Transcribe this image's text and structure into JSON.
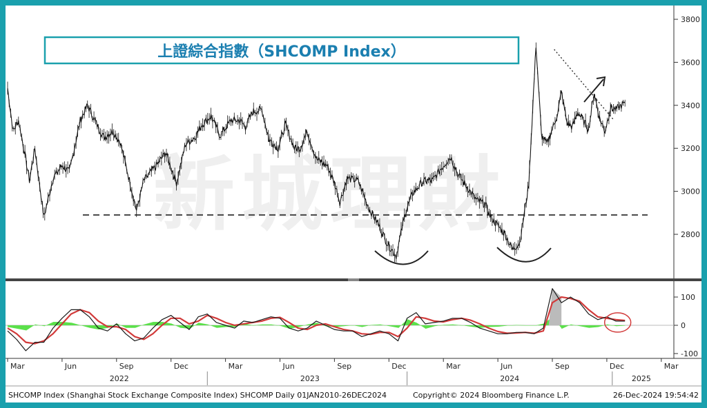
{
  "colors": {
    "border": "#1aa0ad",
    "title_box": "#1aa0ad",
    "title_text": "#1b7fb0",
    "price": "#111111",
    "macd": "#1a1a1a",
    "signal": "#d23a3a",
    "hist_pos": "#5be04a",
    "hist_neg": "#5be04a",
    "annotation": "#1a1a1a",
    "circle": "#d23a3a"
  },
  "title": "上證綜合指數（SHCOMP Index）",
  "watermark": "新城理財",
  "x_axis": {
    "month_labels": [
      "Mar",
      "Jun",
      "Sep",
      "Dec",
      "Mar",
      "Jun",
      "Sep",
      "Dec",
      "Mar",
      "Jun",
      "Sep",
      "Dec",
      "Mar"
    ],
    "year_labels": [
      "2022",
      "2023",
      "2024",
      "2025"
    ]
  },
  "footer": {
    "left": "SHCOMP Index (Shanghai Stock Exchange Composite Index) SHCOMP  Daily 01JAN2010-26DEC2024",
    "center": "Copyright© 2024 Bloomberg Finance L.P.",
    "right": "26-Dec-2024 19:54:42"
  },
  "chart_data": [
    {
      "type": "line",
      "name": "price",
      "y_ticks": [
        2800,
        3000,
        3200,
        3400,
        3600,
        3800
      ],
      "ylim": [
        2620,
        3830
      ],
      "x_domain": [
        0,
        34
      ],
      "x_ticks_months": [
        0,
        3,
        6,
        9,
        12,
        15,
        18,
        21,
        24,
        27,
        30,
        33,
        36
      ],
      "series": [
        {
          "x": [
            0,
            0.3,
            0.6,
            1.0,
            1.2,
            1.5,
            2.0,
            2.5,
            3.0,
            3.4,
            4.0,
            4.4,
            4.8,
            5.3,
            5.8,
            6.2,
            6.8,
            7.1,
            7.5,
            8.2,
            8.7,
            9.3,
            9.8,
            10.3,
            10.7,
            11.2,
            11.7,
            12.3,
            12.8,
            13.1,
            13.5,
            14.0,
            14.4,
            14.9,
            15.3,
            15.8,
            16.1,
            16.5,
            17.0,
            17.6,
            18.0,
            18.3,
            18.7,
            19.3,
            19.9,
            20.4,
            20.9,
            21.4,
            21.9,
            22.3,
            22.8,
            23.1,
            23.4,
            23.9,
            24.4,
            24.8,
            25.3,
            25.8,
            26.3,
            26.6,
            27.0,
            27.4,
            27.8,
            28.2,
            28.7,
            29.1,
            29.4,
            29.7,
            30.0,
            30.1,
            30.3,
            30.5,
            30.8,
            31.1,
            31.4,
            31.7,
            32.0,
            32.3,
            32.6,
            32.9,
            33.2,
            33.5,
            33.8,
            34.0
          ],
          "y": [
            3480,
            3280,
            3330,
            3150,
            3050,
            3200,
            2880,
            3060,
            3120,
            3090,
            3330,
            3400,
            3330,
            3250,
            3280,
            3230,
            3020,
            2910,
            3050,
            3120,
            3180,
            3040,
            3220,
            3250,
            3310,
            3350,
            3260,
            3330,
            3330,
            3300,
            3370,
            3380,
            3240,
            3200,
            3310,
            3200,
            3200,
            3280,
            3150,
            3120,
            3040,
            2950,
            3060,
            3050,
            2920,
            2850,
            2760,
            2700,
            2900,
            2990,
            3040,
            3050,
            3050,
            3110,
            3160,
            3080,
            3020,
            2960,
            2940,
            2880,
            2840,
            2800,
            2730,
            2760,
            3030,
            3680,
            3260,
            3220,
            3290,
            3310,
            3370,
            3460,
            3320,
            3300,
            3370,
            3330,
            3290,
            3460,
            3340,
            3280,
            3390,
            3380,
            3400,
            3410
          ]
        }
      ],
      "support_level": 2890,
      "annotations": [
        "dashed support line",
        "two rounded bottoms",
        "dotted downtrend line",
        "up arrow"
      ]
    },
    {
      "type": "line",
      "name": "oscillator",
      "y_ticks": [
        -100,
        0,
        100
      ],
      "ylim": [
        -130,
        160
      ],
      "series": [
        {
          "x": [
            0,
            0.5,
            1.0,
            1.5,
            2.0,
            2.5,
            3.0,
            3.5,
            4.0,
            4.5,
            5.0,
            5.5,
            6.0,
            6.5,
            7.0,
            7.5,
            8.0,
            8.5,
            9.0,
            9.5,
            10.0,
            10.5,
            11.0,
            11.5,
            12.0,
            12.5,
            13.0,
            13.5,
            14.0,
            14.5,
            15.0,
            15.5,
            16.0,
            16.5,
            17.0,
            17.5,
            18.0,
            18.5,
            19.0,
            19.5,
            20.0,
            20.5,
            21.0,
            21.5,
            22.0,
            22.5,
            23.0,
            23.5,
            24.0,
            24.5,
            25.0,
            25.5,
            26.0,
            26.5,
            27.0,
            27.5,
            28.0,
            28.5,
            29.0,
            29.5,
            30.0,
            30.5,
            31.0,
            31.5,
            32.0,
            32.5,
            33.0,
            33.5,
            34.0
          ],
          "y": [
            -20,
            -50,
            -90,
            -60,
            -60,
            -10,
            25,
            55,
            55,
            30,
            -10,
            -20,
            5,
            -30,
            -55,
            -45,
            -10,
            20,
            35,
            10,
            -15,
            30,
            40,
            10,
            0,
            -10,
            15,
            10,
            20,
            30,
            25,
            -10,
            -20,
            -10,
            15,
            0,
            -15,
            -20,
            -20,
            -40,
            -30,
            -20,
            -30,
            -55,
            25,
            45,
            5,
            10,
            15,
            25,
            25,
            10,
            -10,
            -20,
            -30,
            -30,
            -25,
            -25,
            -30,
            -10,
            130,
            80,
            100,
            80,
            40,
            20,
            30,
            15,
            15
          ]
        },
        {
          "x": [
            0,
            0.5,
            1.0,
            1.5,
            2.0,
            2.5,
            3.0,
            3.5,
            4.0,
            4.5,
            5.0,
            5.5,
            6.0,
            6.5,
            7.0,
            7.5,
            8.0,
            8.5,
            9.0,
            9.5,
            10.0,
            10.5,
            11.0,
            11.5,
            12.0,
            12.5,
            13.0,
            13.5,
            14.0,
            14.5,
            15.0,
            15.5,
            16.0,
            16.5,
            17.0,
            17.5,
            18.0,
            18.5,
            19.0,
            19.5,
            20.0,
            20.5,
            21.0,
            21.5,
            22.0,
            22.5,
            23.0,
            23.5,
            24.0,
            24.5,
            25.0,
            25.5,
            26.0,
            26.5,
            27.0,
            27.5,
            28.0,
            28.5,
            29.0,
            29.5,
            30.0,
            30.5,
            31.0,
            31.5,
            32.0,
            32.5,
            33.0,
            33.5,
            34.0
          ],
          "y": [
            -10,
            -30,
            -60,
            -65,
            -55,
            -30,
            5,
            40,
            55,
            45,
            15,
            -5,
            -5,
            -15,
            -40,
            -50,
            -30,
            0,
            25,
            25,
            5,
            15,
            35,
            25,
            10,
            0,
            5,
            10,
            15,
            25,
            28,
            10,
            -10,
            -15,
            0,
            5,
            -5,
            -15,
            -20,
            -30,
            -32,
            -25,
            -25,
            -40,
            -10,
            30,
            25,
            15,
            12,
            20,
            25,
            18,
            5,
            -10,
            -22,
            -28,
            -27,
            -25,
            -28,
            -20,
            80,
            100,
            95,
            85,
            55,
            30,
            25,
            20,
            17
          ]
        }
      ]
    }
  ]
}
